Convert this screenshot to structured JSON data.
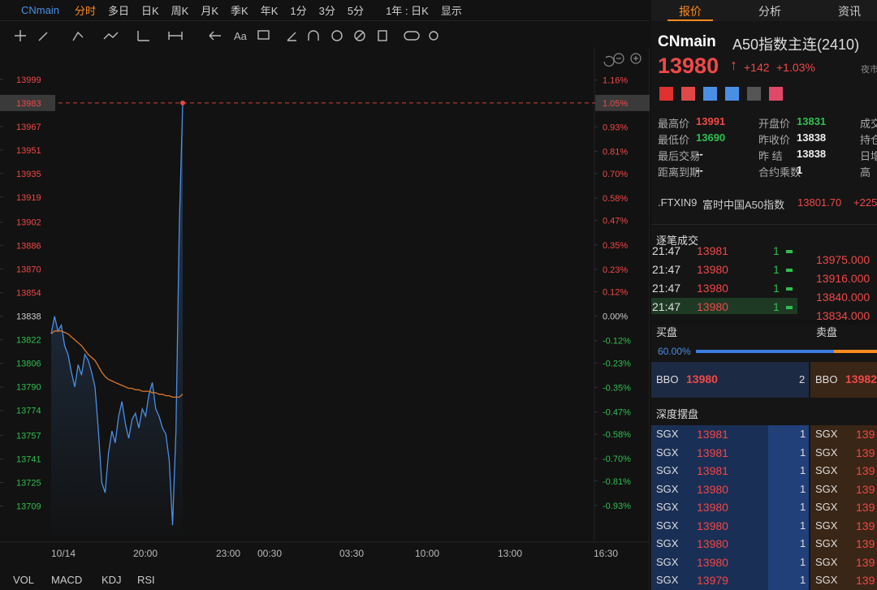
{
  "toolbar": {
    "symbol": "CNmain",
    "periods": [
      "分时",
      "多日",
      "日K",
      "周K",
      "月K",
      "季K",
      "年K",
      "1分",
      "3分",
      "5分"
    ],
    "range": "1年 : 日K",
    "display": "显示",
    "font_button": "Aa"
  },
  "chart": {
    "type": "line",
    "ylim": [
      13685,
      14021
    ],
    "yticks": [
      13999,
      13967,
      13951,
      13935,
      13919,
      13902,
      13886,
      13870,
      13854,
      13838,
      13822,
      13806,
      13790,
      13774,
      13757,
      13741,
      13725,
      13709
    ],
    "y2lim": [
      -1.106,
      1.322
    ],
    "y2ticks": [
      {
        "value": 1.16,
        "label": "1.16%"
      },
      {
        "value": 0.93,
        "label": "0.93%"
      },
      {
        "value": 0.81,
        "label": "0.81%"
      },
      {
        "value": 0.7,
        "label": "0.70%"
      },
      {
        "value": 0.58,
        "label": "0.58%"
      },
      {
        "value": 0.47,
        "label": "0.47%"
      },
      {
        "value": 0.35,
        "label": "0.35%"
      },
      {
        "value": 0.23,
        "label": "0.23%"
      },
      {
        "value": 0.12,
        "label": "0.12%"
      },
      {
        "value": 0,
        "label": "0.00%"
      },
      {
        "value": -0.12,
        "label": "-0.12%"
      },
      {
        "value": -0.23,
        "label": "-0.23%"
      },
      {
        "value": -0.35,
        "label": "-0.35%"
      },
      {
        "value": -0.47,
        "label": "-0.47%"
      },
      {
        "value": -0.58,
        "label": "-0.58%"
      },
      {
        "value": -0.7,
        "label": "-0.70%"
      },
      {
        "value": -0.81,
        "label": "-0.81%"
      },
      {
        "value": -0.93,
        "label": "-0.93%"
      }
    ],
    "base": 13838,
    "current": {
      "price": 13983,
      "pct": {
        "value": 1.05,
        "label": "1.05%"
      }
    },
    "categories": [
      "10/14",
      "20:00",
      "23:00",
      "00:30",
      "03:30",
      "10:00",
      "13:00",
      "16:30"
    ],
    "series": [
      {
        "color": "#4a8fe6",
        "values": [
          13826,
          13838,
          13828,
          13832,
          13818,
          13812,
          13800,
          13790,
          13805,
          13798,
          13812,
          13808,
          13800,
          13790,
          13760,
          13725,
          13718,
          13745,
          13760,
          13752,
          13770,
          13780,
          13765,
          13755,
          13768,
          13772,
          13762,
          13775,
          13770,
          13785,
          13793,
          13775,
          13770,
          13762,
          13758,
          13740,
          13696,
          13760,
          13900,
          13983
        ]
      },
      {
        "color": "#d9772b",
        "values": [
          13826,
          13828,
          13828,
          13828,
          13827,
          13826,
          13824,
          13822,
          13820,
          13818,
          13815,
          13812,
          13810,
          13808,
          13804,
          13800,
          13797,
          13795,
          13794,
          13793,
          13792,
          13791,
          13790,
          13789,
          13789,
          13788,
          13788,
          13787,
          13787,
          13787,
          13786,
          13786,
          13785,
          13785,
          13784,
          13784,
          13783,
          13783,
          13783,
          13785
        ]
      }
    ],
    "indicators": [
      "VOL",
      "MACD",
      "KDJ",
      "RSI"
    ]
  },
  "panel": {
    "tabs": [
      "报价",
      "分析",
      "资讯"
    ],
    "symbol": "CNmain",
    "name": "A50指数主连(2410)",
    "price": "13980",
    "arrow": "↑",
    "change": "+142",
    "change_pct": "+1.03%",
    "session": "夜市",
    "stats": [
      [
        {
          "label": "最高价",
          "value": "13991"
        },
        {
          "label": "开盘价",
          "value": "13831"
        },
        {
          "label": "成交",
          "value": ""
        }
      ],
      [
        {
          "label": "最低价",
          "value": "13690"
        },
        {
          "label": "昨收价",
          "value": "13838"
        },
        {
          "label": "持仓",
          "value": ""
        }
      ],
      [
        {
          "label": "最后交易",
          "value": "--"
        },
        {
          "label": "昨  结",
          "value": "13838"
        },
        {
          "label": "日增",
          "value": ""
        }
      ],
      [
        {
          "label": "距离到期",
          "value": "--"
        },
        {
          "label": "合约乘数",
          "value": "1"
        },
        {
          "label": "高",
          "value": ""
        }
      ]
    ],
    "index_line": {
      "code": ".FTXIN9",
      "name": "富时中国A50指数",
      "price": "13801.70",
      "change": "+225"
    },
    "trades_title": "逐笔成交",
    "trades": [
      [
        "21:47",
        "13981",
        "1"
      ],
      [
        "21:47",
        "13980",
        "1"
      ],
      [
        "21:47",
        "13980",
        "1"
      ],
      [
        "21:47",
        "13980",
        "1"
      ]
    ],
    "levels": [
      "13975.000",
      "13916.000",
      "13840.000",
      "13834.000"
    ],
    "bid_title": "买盘",
    "ask_title": "卖盘",
    "bid_ratio": "60.00%",
    "bbo_bid": {
      "label": "BBO",
      "price": "13980",
      "qty": "2"
    },
    "bbo_ask": {
      "label": "BBO",
      "price": "13982"
    },
    "depth_title": "深度摆盘",
    "depth_bid": [
      [
        "SGX",
        "13981",
        "1"
      ],
      [
        "SGX",
        "13981",
        "1"
      ],
      [
        "SGX",
        "13981",
        "1"
      ],
      [
        "SGX",
        "13980",
        "1"
      ],
      [
        "SGX",
        "13980",
        "1"
      ],
      [
        "SGX",
        "13980",
        "1"
      ],
      [
        "SGX",
        "13980",
        "1"
      ],
      [
        "SGX",
        "13980",
        "1"
      ],
      [
        "SGX",
        "13979",
        "1"
      ]
    ],
    "depth_ask": [
      [
        "SGX",
        "139"
      ],
      [
        "SGX",
        "139"
      ],
      [
        "SGX",
        "139"
      ],
      [
        "SGX",
        "139"
      ],
      [
        "SGX",
        "139"
      ],
      [
        "SGX",
        "139"
      ],
      [
        "SGX",
        "139"
      ],
      [
        "SGX",
        "139"
      ],
      [
        "SGX",
        "139"
      ]
    ]
  }
}
